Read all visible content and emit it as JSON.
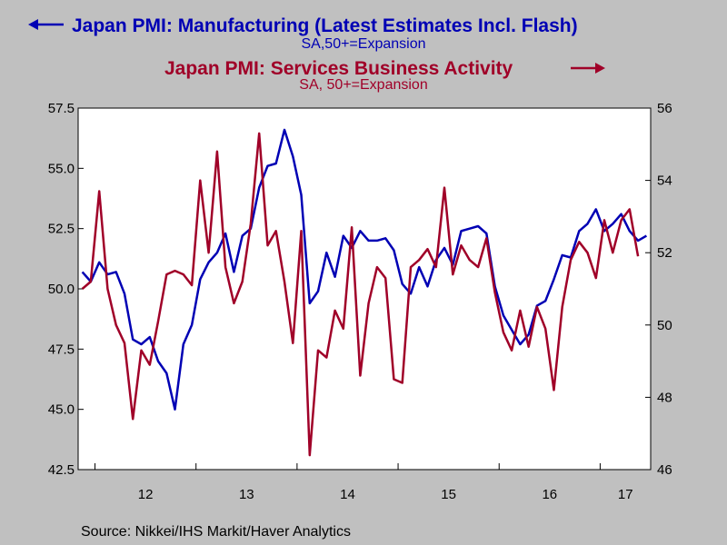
{
  "colors": {
    "manufacturing": "#0000b4",
    "services": "#a00028",
    "plot_bg": "#ffffff",
    "page_bg": "#c0c0c0"
  },
  "titles": {
    "manufacturing_title": "Japan PMI: Manufacturing (Latest Estimates Incl. Flash)",
    "manufacturing_sub": "SA,50+=Expansion",
    "services_title": "Japan PMI: Services Business Activity",
    "services_sub": "SA, 50+=Expansion"
  },
  "source": "Source:  Nikkei/IHS Markit/Haver Analytics",
  "chart_data": {
    "type": "line",
    "x_labels": [
      "12",
      "13",
      "14",
      "15",
      "16",
      "17"
    ],
    "x_range": [
      "2011-11",
      "2017-06"
    ],
    "left_axis": {
      "ylim": [
        42.5,
        57.5
      ],
      "ticks": [
        "57.5",
        "55.0",
        "52.5",
        "50.0",
        "47.5",
        "45.0",
        "42.5"
      ]
    },
    "right_axis": {
      "ylim": [
        46,
        56
      ],
      "ticks": [
        "56",
        "54",
        "52",
        "50",
        "48",
        "46"
      ]
    },
    "series": [
      {
        "name": "Japan PMI: Manufacturing (Latest Estimates Incl. Flash)",
        "axis": "left",
        "start": "2011-11",
        "values": [
          50.7,
          50.3,
          51.1,
          50.6,
          50.7,
          49.8,
          47.9,
          47.7,
          48.0,
          47.0,
          46.5,
          45.0,
          47.7,
          48.5,
          50.4,
          51.1,
          51.5,
          52.3,
          50.7,
          52.2,
          52.5,
          54.2,
          55.1,
          55.2,
          56.6,
          55.5,
          53.9,
          49.4,
          49.9,
          51.5,
          50.5,
          52.2,
          51.7,
          52.4,
          52.0,
          52.0,
          52.1,
          51.6,
          50.2,
          49.8,
          50.9,
          50.1,
          51.2,
          51.7,
          51.0,
          52.4,
          52.5,
          52.6,
          52.3,
          50.1,
          48.9,
          48.3,
          47.7,
          48.1,
          49.3,
          49.5,
          50.4,
          51.4,
          51.3,
          52.4,
          52.7,
          53.3,
          52.4,
          52.7,
          53.1,
          52.4,
          52.0,
          52.2
        ]
      },
      {
        "name": "Japan PMI: Services Business Activity",
        "axis": "right",
        "start": "2011-11",
        "values": [
          51.0,
          51.2,
          53.7,
          51.0,
          50.0,
          49.5,
          47.4,
          49.3,
          48.9,
          50.1,
          51.4,
          51.5,
          51.4,
          51.1,
          54.0,
          52.0,
          54.8,
          51.6,
          50.6,
          51.2,
          52.8,
          55.3,
          52.2,
          52.6,
          51.2,
          49.5,
          52.6,
          46.4,
          49.3,
          49.1,
          50.4,
          49.9,
          52.7,
          48.6,
          50.6,
          51.6,
          51.3,
          48.5,
          48.4,
          51.6,
          51.8,
          52.1,
          51.6,
          53.8,
          51.4,
          52.2,
          51.8,
          51.6,
          52.4,
          50.9,
          49.8,
          49.3,
          50.4,
          49.4,
          50.5,
          49.9,
          48.2,
          50.5,
          51.8,
          52.3,
          52.0,
          51.3,
          52.9,
          52.0,
          52.9,
          53.2,
          51.9
        ]
      }
    ]
  }
}
